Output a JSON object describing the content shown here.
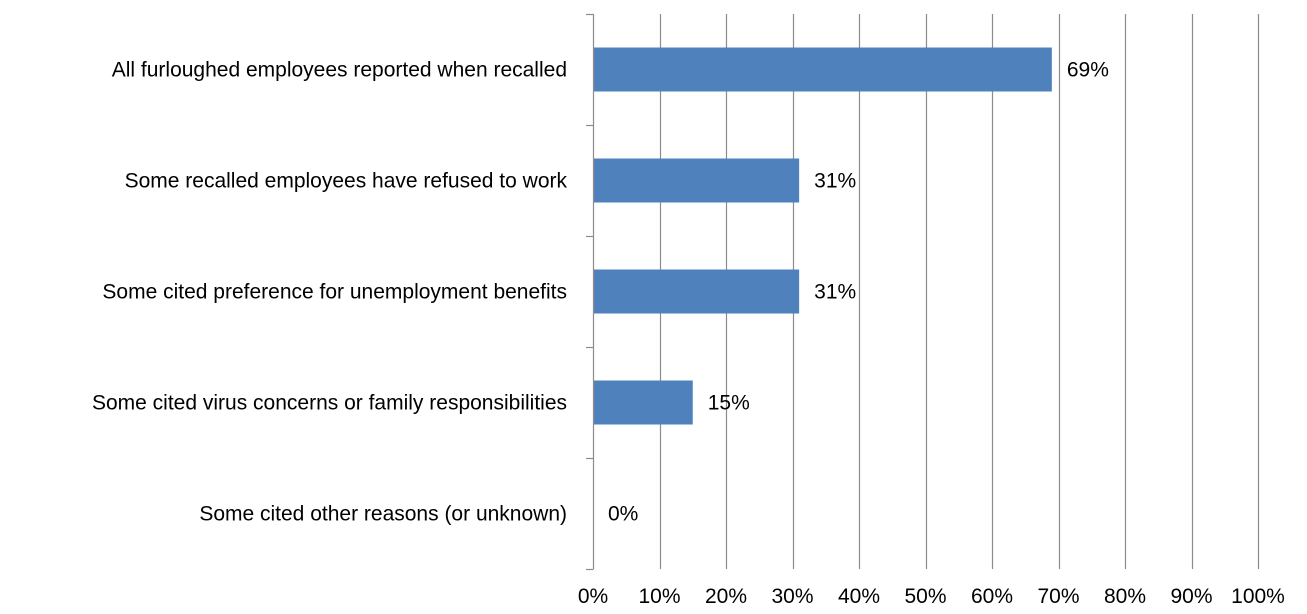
{
  "chart_data": {
    "type": "bar",
    "orientation": "horizontal",
    "categories": [
      "All furloughed employees reported when recalled",
      "Some recalled employees have refused to work",
      "Some cited preference for unemployment benefits",
      "Some cited virus concerns or family responsibilities",
      "Some cited other reasons (or unknown)"
    ],
    "values": [
      69,
      31,
      31,
      15,
      0
    ],
    "data_labels": [
      "69%",
      "31%",
      "31%",
      "15%",
      "0%"
    ],
    "xlim": [
      0,
      100
    ],
    "x_ticks": [
      0,
      10,
      20,
      30,
      40,
      50,
      60,
      70,
      80,
      90,
      100
    ],
    "x_tick_labels": [
      "0%",
      "10%",
      "20%",
      "30%",
      "40%",
      "50%",
      "60%",
      "70%",
      "80%",
      "90%",
      "100%"
    ],
    "grid": "vertical",
    "legend": "none",
    "colors": {
      "bar": "#4f81bd",
      "grid": "#8c8c8c",
      "axis": "#8c8c8c"
    }
  }
}
